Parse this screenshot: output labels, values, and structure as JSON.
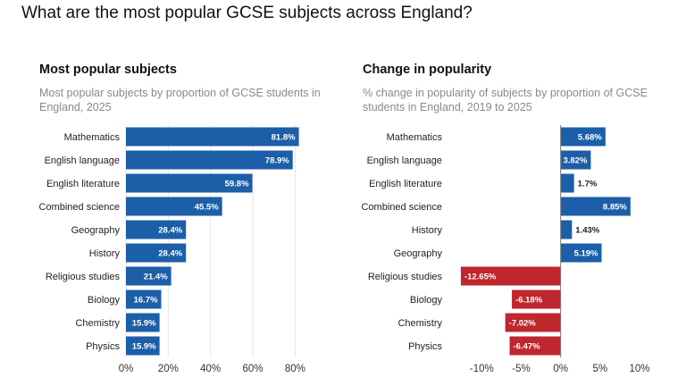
{
  "page": {
    "title": "What are the most popular GCSE subjects across England?"
  },
  "colors": {
    "positive": "#1c5fa8",
    "negative": "#c0262d",
    "grid": "#e6e6e6",
    "zero_line": "#7a7a7a"
  },
  "chart_data": [
    {
      "type": "bar",
      "orientation": "horizontal",
      "title": "Most popular subjects",
      "subtitle": "Most popular subjects by proportion of GCSE students in England, 2025",
      "categories": [
        "Mathematics",
        "English language",
        "English literature",
        "Combined science",
        "Geography",
        "History",
        "Religious studies",
        "Biology",
        "Chemistry",
        "Physics"
      ],
      "values": [
        81.8,
        78.9,
        59.8,
        45.5,
        28.4,
        28.4,
        21.4,
        16.7,
        15.9,
        15.9
      ],
      "value_labels": [
        "81.8%",
        "78.9%",
        "59.8%",
        "45.5%",
        "28.4%",
        "28.4%",
        "21.4%",
        "16.7%",
        "15.9%",
        "15.9%"
      ],
      "xlim": [
        0,
        90
      ],
      "xticks": [
        0,
        20,
        40,
        60,
        80
      ],
      "xtick_labels": [
        "0%",
        "20%",
        "40%",
        "60%",
        "80%"
      ],
      "grid": true,
      "legend": "none"
    },
    {
      "type": "bar",
      "orientation": "horizontal",
      "title": "Change in popularity",
      "subtitle": "% change in popularity of subjects by proportion of GCSE students in England, 2019 to 2025",
      "categories": [
        "Mathematics",
        "English language",
        "English literature",
        "Combined science",
        "History",
        "Geography",
        "Religious studies",
        "Biology",
        "Chemistry",
        "Physics"
      ],
      "values": [
        5.68,
        3.82,
        1.7,
        8.85,
        1.43,
        5.19,
        -12.65,
        -6.18,
        -7.02,
        -6.47
      ],
      "value_labels": [
        "5.68%",
        "3.82%",
        "1.7%",
        "8.85%",
        "1.43%",
        "5.19%",
        "-12.65%",
        "-6.18%",
        "-7.02%",
        "-6.47%"
      ],
      "xlim": [
        -14,
        10
      ],
      "xticks": [
        -10,
        -5,
        0,
        5,
        10
      ],
      "xtick_labels": [
        "-10%",
        "-5%",
        "0%",
        "5%",
        "10%"
      ],
      "grid": false,
      "legend": "none"
    }
  ]
}
